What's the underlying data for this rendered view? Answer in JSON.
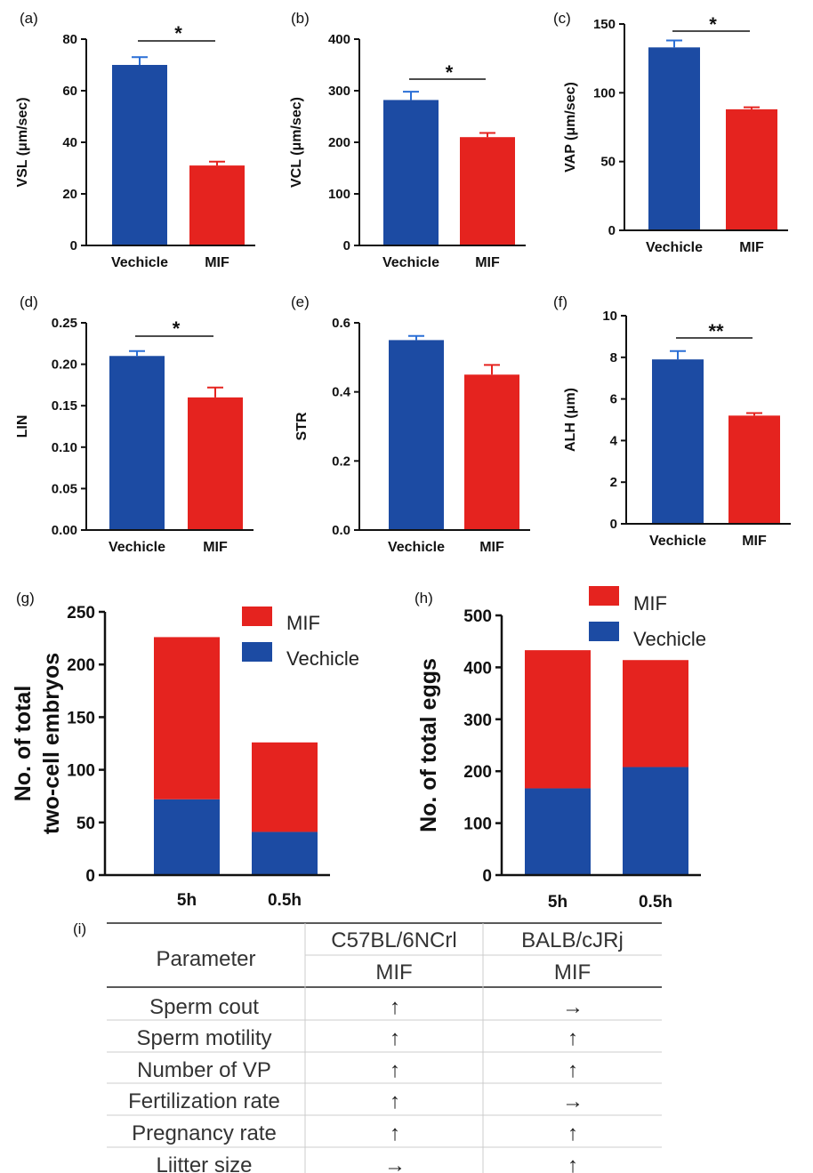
{
  "colors": {
    "vechicle": "#1c4ba3",
    "mif": "#e5231f",
    "err_vechicle": "#2a6fd6",
    "err_mif": "#e5231f",
    "axis": "#111111"
  },
  "chart_data": [
    {
      "panel": "(a)",
      "type": "bar",
      "categories": [
        "Vechicle",
        "MIF"
      ],
      "values": [
        70,
        31
      ],
      "errors": [
        3,
        1.5
      ],
      "ylabel": "VSL (μm/sec)",
      "ylim": [
        0,
        80
      ],
      "yticks": [
        0,
        20,
        40,
        60,
        80
      ],
      "ytick_labels": [
        "0",
        "20",
        "40",
        "60",
        "80"
      ],
      "significance": "*"
    },
    {
      "panel": "(b)",
      "type": "bar",
      "categories": [
        "Vechicle",
        "MIF"
      ],
      "values": [
        282,
        210
      ],
      "errors": [
        16,
        8
      ],
      "ylabel": "VCL (μm/sec)",
      "ylim": [
        0,
        400
      ],
      "yticks": [
        0,
        100,
        200,
        300,
        400
      ],
      "ytick_labels": [
        "0",
        "100",
        "200",
        "300",
        "400"
      ],
      "significance": "*"
    },
    {
      "panel": "(c)",
      "type": "bar",
      "categories": [
        "Vechicle",
        "MIF"
      ],
      "values": [
        133,
        88
      ],
      "errors": [
        5,
        1.5
      ],
      "ylabel": "VAP (μm/sec)",
      "ylim": [
        0,
        150
      ],
      "yticks": [
        0,
        50,
        100,
        150
      ],
      "ytick_labels": [
        "0",
        "50",
        "100",
        "150"
      ],
      "significance": "*"
    },
    {
      "panel": "(d)",
      "type": "bar",
      "categories": [
        "Vechicle",
        "MIF"
      ],
      "values": [
        0.21,
        0.16
      ],
      "errors": [
        0.006,
        0.012
      ],
      "ylabel": "LIN",
      "ylim": [
        0,
        0.25
      ],
      "yticks": [
        0,
        0.05,
        0.1,
        0.15,
        0.2,
        0.25
      ],
      "ytick_labels": [
        "0.00",
        "0.05",
        "0.10",
        "0.15",
        "0.20",
        "0.25"
      ],
      "significance": "*"
    },
    {
      "panel": "(e)",
      "type": "bar",
      "categories": [
        "Vechicle",
        "MIF"
      ],
      "values": [
        0.55,
        0.45
      ],
      "errors": [
        0.012,
        0.028
      ],
      "ylabel": "STR",
      "ylim": [
        0,
        0.6
      ],
      "yticks": [
        0,
        0.2,
        0.4,
        0.6
      ],
      "ytick_labels": [
        "0.0",
        "0.2",
        "0.4",
        "0.6"
      ],
      "significance": ""
    },
    {
      "panel": "(f)",
      "type": "bar",
      "categories": [
        "Vechicle",
        "MIF"
      ],
      "values": [
        7.9,
        5.2
      ],
      "errors": [
        0.4,
        0.12
      ],
      "ylabel": "ALH (μm)",
      "ylim": [
        0,
        10
      ],
      "yticks": [
        0,
        2,
        4,
        6,
        8,
        10
      ],
      "ytick_labels": [
        "0",
        "2",
        "4",
        "6",
        "8",
        "10"
      ],
      "significance": "**"
    },
    {
      "panel": "(g)",
      "type": "bar",
      "stacked": true,
      "categories": [
        "5h",
        "0.5h"
      ],
      "series": [
        {
          "name": "Vechicle",
          "values": [
            72,
            41
          ]
        },
        {
          "name": "MIF",
          "values": [
            154,
            85
          ]
        }
      ],
      "ylabel_lines": [
        "No. of total",
        "two-cell embryos"
      ],
      "ylim": [
        0,
        250
      ],
      "yticks": [
        0,
        50,
        100,
        150,
        200,
        250
      ],
      "ytick_labels": [
        "0",
        "50",
        "100",
        "150",
        "200",
        "250"
      ],
      "legend": [
        "MIF",
        "Vechicle"
      ],
      "legend_position": "top-right"
    },
    {
      "panel": "(h)",
      "type": "bar",
      "stacked": true,
      "categories": [
        "5h",
        "0.5h"
      ],
      "series": [
        {
          "name": "Vechicle",
          "values": [
            167,
            208
          ]
        },
        {
          "name": "MIF",
          "values": [
            266,
            206
          ]
        }
      ],
      "ylabel_lines": [
        "No. of total eggs"
      ],
      "ylim": [
        0,
        500
      ],
      "yticks": [
        0,
        100,
        200,
        300,
        400,
        500
      ],
      "ytick_labels": [
        "0",
        "100",
        "200",
        "300",
        "400",
        "500"
      ],
      "legend": [
        "MIF",
        "Vechicle"
      ],
      "legend_position": "top-right"
    }
  ],
  "table": {
    "panel": "(i)",
    "header_param": "Parameter",
    "strains": [
      "C57BL/6NCrl",
      "BALB/cJRj"
    ],
    "sub": [
      "MIF",
      "MIF"
    ],
    "rows": [
      {
        "label": "Sperm cout",
        "values": [
          "↑",
          "→"
        ]
      },
      {
        "label": "Sperm motility",
        "values": [
          "↑",
          "↑"
        ]
      },
      {
        "label": "Number of VP",
        "values": [
          "↑",
          "↑"
        ]
      },
      {
        "label": "Fertilization rate",
        "values": [
          "↑",
          "→"
        ]
      },
      {
        "label": "Pregnancy rate",
        "values": [
          "↑",
          "↑"
        ]
      },
      {
        "label": "Liitter size",
        "values": [
          "→",
          "↑"
        ]
      }
    ]
  }
}
